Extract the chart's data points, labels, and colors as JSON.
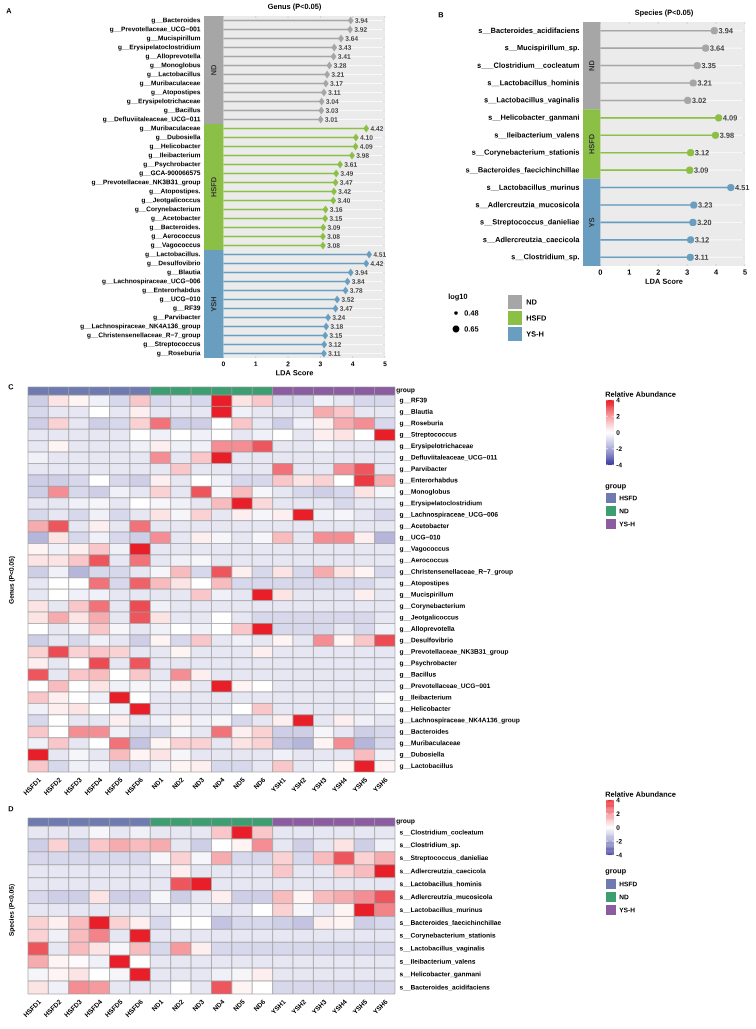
{
  "chart_data": [
    {
      "type": "lollipop",
      "orientation": "horizontal",
      "title": "Genus (P<0.05)",
      "xlabel": "LDA Score",
      "marker": "diamond",
      "grid": "y",
      "legend": "bottom right",
      "xlim": [
        -0.6,
        5
      ],
      "xticks": [
        0,
        1,
        2,
        3,
        4,
        5
      ],
      "categories": [
        "g__Bacteroides",
        "g__Prevotellaceae_UCG−001",
        "g__Mucispirillum",
        "g__Erysipelatoclostridium",
        "g__Alloprevotella",
        "g__Monoglobus",
        "g__Lactobacillus",
        "g__Muribaculaceae",
        "g__Atopostipes",
        "g__Erysipelotrichaceae",
        "g__Bacillus",
        "g__Defluviitaleaceae_UCG−011",
        "g__Muribaculaceae",
        "g__Dubosiella",
        "g__Helicobacter",
        "g__Ileibacterium",
        "g__Psychrobacter",
        "g__GCA-900066575",
        "g__Prevotellaceae_NK3B31_group",
        "g__Atopostipes.",
        "g__Jeotgalicoccus",
        "g__Corynebacterium",
        "g__Acetobacter",
        "g__Bacteroides.",
        "g__Aerococcus",
        "g__Vagococcus",
        "g__Lactobacillus.",
        "g__Desulfovibrio",
        "g__Blautia",
        "g__Lachnospiraceae_UCG−006",
        "g__Enterorhabdus",
        "g__UCG−010",
        "g__RF39",
        "g__Parvibacter",
        "g__Lachnospiraceae_NK4A136_group",
        "g__Christensenellaceae_R−7_group",
        "g__Streptococcus",
        "g__Roseburia"
      ],
      "series": [
        {
          "name": "ND",
          "color": "#a6a6a6",
          "values": [
            3.94,
            3.92,
            3.64,
            3.43,
            3.41,
            3.28,
            3.21,
            3.17,
            3.11,
            3.04,
            3.03,
            3.01,
            null,
            null,
            null,
            null,
            null,
            null,
            null,
            null,
            null,
            null,
            null,
            null,
            null,
            null,
            null,
            null,
            null,
            null,
            null,
            null,
            null,
            null,
            null,
            null,
            null,
            null
          ],
          "value_labels": [
            "3.94",
            "3.92",
            "3.64",
            "3.43",
            "3.41",
            "3.28",
            "3.21",
            "3.17",
            "3.11",
            "3.04",
            "3.03",
            "3.01",
            null,
            null,
            null,
            null,
            null,
            null,
            null,
            null,
            null,
            null,
            null,
            null,
            null,
            null,
            null,
            null,
            null,
            null,
            null,
            null,
            null,
            null,
            null,
            null,
            null,
            null
          ]
        },
        {
          "name": "HSFD",
          "color": "#8cbf45",
          "values": [
            null,
            null,
            null,
            null,
            null,
            null,
            null,
            null,
            null,
            null,
            null,
            null,
            4.42,
            4.1,
            4.09,
            3.98,
            3.61,
            3.49,
            3.47,
            3.42,
            3.4,
            3.16,
            3.15,
            3.09,
            3.08,
            3.08,
            null,
            null,
            null,
            null,
            null,
            null,
            null,
            null,
            null,
            null,
            null,
            null
          ],
          "value_labels": [
            null,
            null,
            null,
            null,
            null,
            null,
            null,
            null,
            null,
            null,
            null,
            null,
            "4.42",
            "4.10",
            "4.09",
            "3.98",
            "3.61",
            "3.49",
            "3.47",
            "3.42",
            "3.40",
            "3.16",
            "3.15",
            "3.09",
            "3.08",
            "3.08",
            null,
            null,
            null,
            null,
            null,
            null,
            null,
            null,
            null,
            null,
            null,
            null
          ]
        },
        {
          "name": "YS-H",
          "color": "#6a9ec0",
          "values": [
            null,
            null,
            null,
            null,
            null,
            null,
            null,
            null,
            null,
            null,
            null,
            null,
            null,
            null,
            null,
            null,
            null,
            null,
            null,
            null,
            null,
            null,
            null,
            null,
            null,
            null,
            4.51,
            4.42,
            3.94,
            3.84,
            3.78,
            3.52,
            3.47,
            3.24,
            3.18,
            3.15,
            3.12,
            3.11
          ],
          "value_labels": [
            null,
            null,
            null,
            null,
            null,
            null,
            null,
            null,
            null,
            null,
            null,
            null,
            null,
            null,
            null,
            null,
            null,
            null,
            null,
            null,
            null,
            null,
            null,
            null,
            null,
            null,
            "4.51",
            "4.42",
            "3.94",
            "3.84",
            "3.78",
            "3.52",
            "3.47",
            "3.24",
            "3.18",
            "3.15",
            "3.12",
            "3.11"
          ]
        }
      ],
      "annotations": [
        "A",
        "ND",
        "HSFD",
        "YSH",
        "log10",
        "0.48",
        "0.65"
      ]
    },
    {
      "type": "lollipop",
      "orientation": "horizontal",
      "title": "Species (P<0.05)",
      "xlabel": "LDA Score",
      "marker": "circle",
      "grid": "y",
      "xlim": [
        -0.6,
        5
      ],
      "xticks": [
        0,
        1,
        2,
        3,
        4,
        5
      ],
      "categories": [
        "s__Bacteroides_acidifaciens",
        "s__Mucispirillum_sp.",
        "s___Clostridium__cocleatum",
        "s__Lactobacillus_hominis",
        "s__Lactobacillus_vaginalis",
        "s__Helicobacter_ganmani",
        "s__Ileibacterium_valens",
        "s__Corynebacterium_stationis",
        "s__Bacteroides_faecichinchillae",
        "s__Lactobacillus_murinus",
        "s__Adlercreutzia_mucosicola",
        "s__Streptococcus_danieliae",
        "s__Adlercreutzia_caecicola",
        "s__Clostridium_sp."
      ],
      "series": [
        {
          "color": "#a6a6a6",
          "values": [
            3.94,
            3.64,
            3.35,
            3.21,
            3.02,
            null,
            null,
            null,
            null,
            null,
            null,
            null,
            null,
            null
          ],
          "value_labels": [
            "3.94",
            "3.64",
            "3.35",
            "3.21",
            "3.02",
            null,
            null,
            null,
            null,
            null,
            null,
            null,
            null,
            null
          ]
        },
        {
          "color": "#8cbf45",
          "values": [
            null,
            null,
            null,
            null,
            null,
            4.09,
            3.98,
            3.12,
            3.09,
            null,
            null,
            null,
            null,
            null
          ],
          "value_labels": [
            null,
            null,
            null,
            null,
            null,
            "4.09",
            "3.98",
            "3.12",
            "3.09",
            null,
            null,
            null,
            null,
            null
          ]
        },
        {
          "color": "#6a9ec0",
          "values": [
            null,
            null,
            null,
            null,
            null,
            null,
            null,
            null,
            null,
            4.51,
            3.23,
            3.2,
            3.12,
            3.11
          ],
          "value_labels": [
            null,
            null,
            null,
            null,
            null,
            null,
            null,
            null,
            null,
            "4.51",
            "3.23",
            "3.20",
            "3.12",
            "3.11"
          ]
        }
      ],
      "annotations": [
        "B",
        "ND",
        "HSFD",
        "YS"
      ]
    },
    {
      "type": "heatmap",
      "ylabel": "Genus (P<0.05)",
      "clabel": "Relative Abundance",
      "clim": [
        -4,
        4
      ],
      "cticks": [
        -4,
        -2,
        0,
        2,
        4
      ],
      "legend_title": "group",
      "categories": [
        "HSFD1",
        "HSFD2",
        "HSFD3",
        "HSFD4",
        "HSFD5",
        "HSFD6",
        "ND1",
        "ND2",
        "ND3",
        "ND4",
        "ND5",
        "ND6",
        "YSH1",
        "YSH2",
        "YSH3",
        "YSH4",
        "YSH5",
        "YSH6"
      ],
      "colors": [
        "#6f7bb0",
        "#6f7bb0",
        "#6f7bb0",
        "#6f7bb0",
        "#6f7bb0",
        "#6f7bb0",
        "#3d9e72",
        "#3d9e72",
        "#3d9e72",
        "#3d9e72",
        "#3d9e72",
        "#3d9e72",
        "#8b5ca0",
        "#8b5ca0",
        "#8b5ca0",
        "#8b5ca0",
        "#8b5ca0",
        "#8b5ca0"
      ],
      "y_categories": [
        "g__RF39",
        "g__Blautia",
        "g__Roseburia",
        "g__Streptococcus",
        "g__Erysipelotrichaceae",
        "g__Defluviitaleaceae_UCG−011",
        "g__Parvibacter",
        "g__Enterorhabdus",
        "g__Monoglobus",
        "g__Erysipelatoclostridium",
        "g__Lachnospiraceae_UCG−006",
        "g__Acetobacter",
        "g__UCG−010",
        "g__Vagococcus",
        "g__Aerococcus",
        "g__Christensenellaceae_R−7_group",
        "g__Atopostipes",
        "g__Mucispirillum",
        "g__Corynebacterium",
        "g__Jeotgalicoccus",
        "g__Alloprevotella",
        "g__Desulfovibrio",
        "g__Prevotellaceae_NK3B31_group",
        "g__Psychrobacter",
        "g__Bacillus",
        "g__Prevotellaceae_UCG−001",
        "g__Ileibacterium",
        "g__Helicobacter",
        "g__Lachnospiraceae_NK4A136_group",
        "g__Bacteroides",
        "g__Muribaculaceae",
        "g__Dubosiella",
        "g__Lactobacillus"
      ],
      "cells": [
        [
          -1,
          0.5,
          0.2,
          -0.3,
          -0.8,
          1,
          -0.8,
          -0.6,
          -0.8,
          4,
          0.5,
          1,
          -0.8,
          -0.8,
          -0.3,
          -0.5,
          -0.8,
          -0.8
        ],
        [
          -0.8,
          -0.5,
          -0.5,
          0,
          -0.5,
          0.3,
          -0.5,
          -0.5,
          -0.5,
          4,
          -0.3,
          -0.5,
          -0.5,
          -0.5,
          1.5,
          1,
          -0.5,
          -0.5
        ],
        [
          -1,
          0.8,
          -0.5,
          -1,
          -0.8,
          0.8,
          2.5,
          -1,
          -1,
          0,
          1,
          -0.5,
          -1,
          -0.3,
          0.3,
          1.5,
          2,
          -0.8
        ],
        [
          -0.5,
          -0.5,
          -0.5,
          -0.5,
          -0.5,
          0,
          -0.3,
          0,
          -0.3,
          0,
          -0.5,
          -0.3,
          0,
          -0.5,
          0.3,
          0.5,
          0,
          4
        ],
        [
          -0.5,
          0.2,
          -0.5,
          -0.5,
          -0.5,
          -0.3,
          0.3,
          -0.3,
          -0.3,
          2,
          2,
          3,
          -0.5,
          -0.5,
          -0.3,
          -0.5,
          -0.5,
          -0.5
        ],
        [
          -0.3,
          -0.5,
          -0.5,
          -0.5,
          -0.5,
          -0.5,
          2,
          -0.5,
          1,
          4,
          -0.5,
          -0.5,
          -0.5,
          -0.5,
          -0.5,
          -0.5,
          -0.5,
          -0.5
        ],
        [
          -0.5,
          -0.5,
          -0.5,
          -0.5,
          -0.5,
          -0.5,
          -0.5,
          1,
          -0.5,
          -0.5,
          -0.5,
          -0.5,
          2.5,
          -0.5,
          -0.5,
          2,
          3,
          -0.5
        ],
        [
          -1,
          -1,
          -0.8,
          0,
          -0.8,
          -1,
          0.3,
          -0.5,
          0,
          -0.3,
          -0.8,
          -0.8,
          1,
          0.5,
          0.8,
          0,
          3.5,
          1.5
        ],
        [
          -1,
          2,
          -0.8,
          -1,
          -0.3,
          -0.5,
          0.8,
          -0.5,
          3,
          -0.2,
          1.2,
          -0.2,
          -0.5,
          -0.8,
          -1,
          -0.8,
          0.5,
          -0.2
        ],
        [
          -0.5,
          -0.5,
          -0.3,
          -0.2,
          -0.5,
          0,
          -0.2,
          -0.3,
          -0.5,
          1.2,
          4,
          0.7,
          -0.5,
          -0.5,
          -0.5,
          -0.8,
          -0.5,
          -0.5
        ],
        [
          -0.8,
          -0.5,
          -0.8,
          -0.3,
          -0.8,
          -0.5,
          0.5,
          -0.2,
          0.8,
          -0.5,
          0.3,
          -0.2,
          0.3,
          4,
          -0.3,
          -0.2,
          -0.5,
          -0.8
        ],
        [
          1.5,
          3,
          -0.5,
          0.3,
          -0.5,
          2.5,
          -0.5,
          -0.5,
          -0.5,
          -0.5,
          -0.5,
          -0.5,
          -0.5,
          -0.5,
          -0.5,
          -0.5,
          -0.5,
          -0.5
        ],
        [
          -1.5,
          0.5,
          -0.8,
          -0.3,
          -0.8,
          -1,
          2,
          -0.5,
          0.3,
          -0.2,
          -0.5,
          -0.2,
          1.2,
          -0.5,
          2,
          2,
          0.3,
          -1.5
        ],
        [
          0.2,
          -0.3,
          0.3,
          1,
          -0.3,
          4,
          -0.5,
          -0.5,
          -0.5,
          -0.5,
          -0.5,
          -0.5,
          -0.5,
          -0.5,
          -0.5,
          -0.5,
          -0.5,
          -0.5
        ],
        [
          0.5,
          0.5,
          1,
          3,
          -0.5,
          2.5,
          -0.5,
          -0.3,
          -0.2,
          -0.5,
          -0.5,
          -0.5,
          -0.5,
          -0.5,
          -0.5,
          -0.5,
          -0.5,
          -0.5
        ],
        [
          -1,
          -0.3,
          -1.5,
          -0.8,
          -0.8,
          -0.5,
          -0.2,
          1.2,
          -0.8,
          3,
          0.3,
          -0.8,
          0.5,
          -0.8,
          1.5,
          0.5,
          0.2,
          -0.8
        ],
        [
          -0.5,
          0,
          0,
          2.5,
          -0.8,
          2.8,
          1.2,
          0.5,
          0,
          1.2,
          -0.8,
          -0.8,
          -0.8,
          -0.8,
          -0.8,
          -0.8,
          -0.8,
          -0.5
        ],
        [
          -0.5,
          0,
          -0.3,
          -0.3,
          -0.5,
          -0.5,
          -0.5,
          -0.5,
          1,
          -0.3,
          -0.5,
          4,
          0.5,
          -0.5,
          -0.5,
          -0.5,
          0.3,
          -0.5
        ],
        [
          0.5,
          -0.5,
          1,
          2.5,
          -0.5,
          3.2,
          -0.3,
          -0.5,
          -0.5,
          -0.5,
          -0.5,
          -0.5,
          -0.5,
          -0.5,
          -0.5,
          -0.5,
          -0.5,
          -0.5
        ],
        [
          0.5,
          1.5,
          0.5,
          1.5,
          -0.5,
          3,
          0.5,
          -0.5,
          -0.5,
          0,
          -0.5,
          -0.8,
          -0.8,
          -0.8,
          -0.8,
          -0.8,
          -0.8,
          -0.5
        ],
        [
          0,
          -0.5,
          -0.2,
          1,
          -0.2,
          -0.5,
          -0.3,
          0,
          -0.3,
          0,
          1,
          4,
          -0.8,
          -0.8,
          -0.8,
          -0.5,
          -0.8,
          -0.3
        ],
        [
          -1,
          -0.5,
          -0.8,
          -0.3,
          -0.5,
          -1,
          0.2,
          -0.8,
          1,
          -0.5,
          -0.3,
          -0.5,
          0.2,
          -0.5,
          2,
          0.2,
          1,
          3.2
        ],
        [
          0.8,
          3.2,
          0.8,
          1,
          0.8,
          -0.5,
          -0.5,
          0.2,
          -0.5,
          -0.5,
          -0.5,
          0.3,
          -0.5,
          -0.5,
          -0.5,
          -0.5,
          -0.5,
          -0.5
        ],
        [
          0.3,
          -0.5,
          0,
          3.2,
          -0.5,
          3,
          -0.5,
          -0.5,
          -0.5,
          -0.5,
          -0.5,
          -0.5,
          -0.5,
          -0.5,
          -0.5,
          -0.5,
          -0.5,
          -0.5
        ],
        [
          3,
          -0.5,
          1,
          1.2,
          0,
          1,
          -0.5,
          2,
          0.3,
          -0.5,
          -0.5,
          -0.5,
          -0.5,
          -0.5,
          -0.5,
          -0.5,
          -0.5,
          -0.5
        ],
        [
          0,
          1.2,
          0,
          0.5,
          -0.3,
          -0.2,
          -0.3,
          0.3,
          -0.5,
          4,
          0.2,
          0,
          -0.5,
          -0.5,
          -0.5,
          -0.5,
          -0.5,
          -0.5
        ],
        [
          1,
          0.3,
          0,
          -0.3,
          4,
          0,
          -0.5,
          -0.5,
          -0.5,
          -0.5,
          -0.5,
          -0.5,
          -0.5,
          -0.5,
          -0.5,
          -0.5,
          -0.5,
          -0.2
        ],
        [
          -0.3,
          0.3,
          0.5,
          0,
          -0.3,
          4,
          -0.5,
          -0.5,
          -0.5,
          -0.5,
          0,
          1,
          -0.5,
          -0.5,
          -0.5,
          -0.5,
          -0.5,
          -0.3
        ],
        [
          -0.8,
          0,
          -0.5,
          -0.5,
          0.3,
          -0.5,
          -0.3,
          0.2,
          -0.3,
          -0.2,
          -0.8,
          -0.5,
          0.3,
          4,
          -0.5,
          0.3,
          -0.3,
          -0.5
        ],
        [
          1,
          0,
          2,
          2,
          -0.3,
          -0.8,
          -0.8,
          -0.2,
          -0.5,
          2.5,
          0.3,
          0.8,
          -1,
          -1,
          -0.2,
          -0.5,
          -1,
          -0.8
        ],
        [
          -0.3,
          1,
          -0.5,
          0,
          2.5,
          -1.2,
          0.2,
          0.8,
          0.8,
          -0.5,
          0.5,
          0.8,
          -1.2,
          -1.5,
          0.2,
          2,
          -1.5,
          -0.8
        ],
        [
          4,
          -0.5,
          -0.2,
          -0.5,
          1.2,
          0.2,
          0.5,
          -0.2,
          -0.5,
          -0.5,
          -0.5,
          -0.5,
          -0.3,
          -0.5,
          -0.5,
          -0.5,
          1.2,
          -0.3
        ],
        [
          1,
          -0.8,
          -0.3,
          -0.3,
          -0.8,
          -0.8,
          -0.3,
          0.2,
          0.3,
          -0.8,
          -0.8,
          -0.5,
          1,
          -0.5,
          -0.3,
          0.2,
          4,
          0.2
        ]
      ],
      "annotations": [
        "C",
        "group",
        "HSFD",
        "ND",
        "YS-H"
      ]
    },
    {
      "type": "heatmap",
      "ylabel": "Species (P<0.05)",
      "clabel": "Relative Abundance",
      "clim": [
        -4,
        4
      ],
      "cticks": [
        -4,
        -2,
        0,
        2,
        4
      ],
      "legend_title": "group",
      "categories": [
        "HSFD1",
        "HSFD2",
        "HSFD3",
        "HSFD4",
        "HSFD5",
        "HSFD6",
        "ND1",
        "ND2",
        "ND3",
        "ND4",
        "ND5",
        "ND6",
        "YSH1",
        "YSH2",
        "YSH3",
        "YSH4",
        "YSH5",
        "YSH6"
      ],
      "colors": [
        "#6f7bb0",
        "#6f7bb0",
        "#6f7bb0",
        "#6f7bb0",
        "#6f7bb0",
        "#6f7bb0",
        "#3d9e72",
        "#3d9e72",
        "#3d9e72",
        "#3d9e72",
        "#3d9e72",
        "#3d9e72",
        "#8b5ca0",
        "#8b5ca0",
        "#8b5ca0",
        "#8b5ca0",
        "#8b5ca0",
        "#8b5ca0"
      ],
      "y_categories": [
        "s__Clostridium_cocleatum",
        "s__Clostridium_sp.",
        "s__Streptococcus_danieliae",
        "s__Adlercreutzia_caecicola",
        "s__Lactobacillus_hominis",
        "s__Adlercreutzia_mucosicola",
        "s__Lactobacillus_murinus",
        "s__Bacteroides_faecichinchillae",
        "s__Corynebacterium_stationis",
        "s__Lactobacillus_vaginalis",
        "s__Ileibacterium_valens",
        "s__Helicobacter_ganmani",
        "s__Bacteroides_acidifaciens"
      ],
      "cells": [
        [
          -0.5,
          -0.5,
          -0.5,
          -0.2,
          -0.5,
          -0.3,
          -0.5,
          -0.5,
          -0.5,
          1,
          4,
          1,
          -0.5,
          -0.5,
          -0.5,
          -0.5,
          -0.5,
          -0.5
        ],
        [
          -1,
          0.8,
          -1,
          1,
          1.5,
          1.2,
          1.5,
          -0.5,
          -1,
          0,
          0.2,
          2,
          -0.5,
          -1,
          -0.5,
          0.5,
          -1,
          -0.3
        ],
        [
          -0.8,
          -0.8,
          -0.8,
          -0.8,
          -0.8,
          -0.8,
          -0.2,
          0.8,
          -0.2,
          1.5,
          -0.8,
          -0.8,
          0.8,
          -0.8,
          1.2,
          3,
          0.8,
          1.5
        ],
        [
          -0.5,
          -0.5,
          -0.5,
          -0.5,
          -0.5,
          -0.5,
          -0.5,
          0.3,
          -0.5,
          -0.5,
          -0.5,
          -0.5,
          1,
          -0.5,
          -0.5,
          0.8,
          1.2,
          4
        ],
        [
          -0.5,
          -0.5,
          -0.5,
          -0.5,
          -0.5,
          -0.5,
          -0.5,
          3,
          4,
          -0.5,
          -0.5,
          -0.5,
          -0.5,
          -0.5,
          -0.5,
          -0.5,
          -0.5,
          -0.5
        ],
        [
          -0.8,
          -1,
          -1,
          0.5,
          -1,
          -1,
          -0.2,
          -1,
          -0.5,
          0.3,
          -1,
          -1,
          1.2,
          0.2,
          1.2,
          1.5,
          2,
          3
        ],
        [
          -0.5,
          -0.5,
          -0.5,
          -0.5,
          -0.5,
          -0.5,
          -0.5,
          -0.3,
          -0.3,
          -0.5,
          -0.5,
          0,
          0.8,
          -0.2,
          -0.5,
          0.2,
          4,
          2.2
        ],
        [
          0.8,
          0.3,
          1.2,
          4,
          0.8,
          0.3,
          -0.8,
          0,
          0,
          -1.2,
          -0.8,
          -0.8,
          -1,
          -1.2,
          0.3,
          0.2,
          -1,
          -0.8
        ],
        [
          0.8,
          -0.3,
          1.2,
          2.2,
          -0.5,
          4,
          -0.5,
          -0.5,
          -0.5,
          -0.5,
          -0.5,
          -0.5,
          -0.5,
          -0.5,
          -0.5,
          -0.5,
          -0.5,
          -0.5
        ],
        [
          3,
          -0.5,
          1.2,
          0.5,
          -0.2,
          1.2,
          -0.8,
          1.8,
          0.3,
          -0.8,
          -0.8,
          -0.8,
          -0.8,
          -0.8,
          -0.8,
          -0.8,
          -0.8,
          -0.8
        ],
        [
          1.5,
          0.2,
          0.1,
          -0.3,
          4,
          0,
          -0.5,
          -0.5,
          -0.5,
          -0.5,
          -0.5,
          -0.5,
          -0.5,
          -0.5,
          -0.5,
          -0.5,
          -0.5,
          -0.5
        ],
        [
          -0.2,
          0.2,
          0.5,
          0,
          -0.2,
          4,
          -0.5,
          -0.5,
          -0.5,
          -0.3,
          -0.2,
          0.3,
          -0.5,
          -0.5,
          -0.5,
          -0.5,
          -0.5,
          -0.5
        ],
        [
          0.5,
          -0.3,
          2,
          1.8,
          -0.5,
          -0.5,
          -0.5,
          0,
          -0.5,
          3,
          0.2,
          0,
          -0.8,
          -0.8,
          -0.8,
          -0.8,
          -0.8,
          -0.8
        ]
      ],
      "annotations": [
        "D",
        "group",
        "HSFD",
        "ND",
        "YS-H"
      ]
    }
  ]
}
